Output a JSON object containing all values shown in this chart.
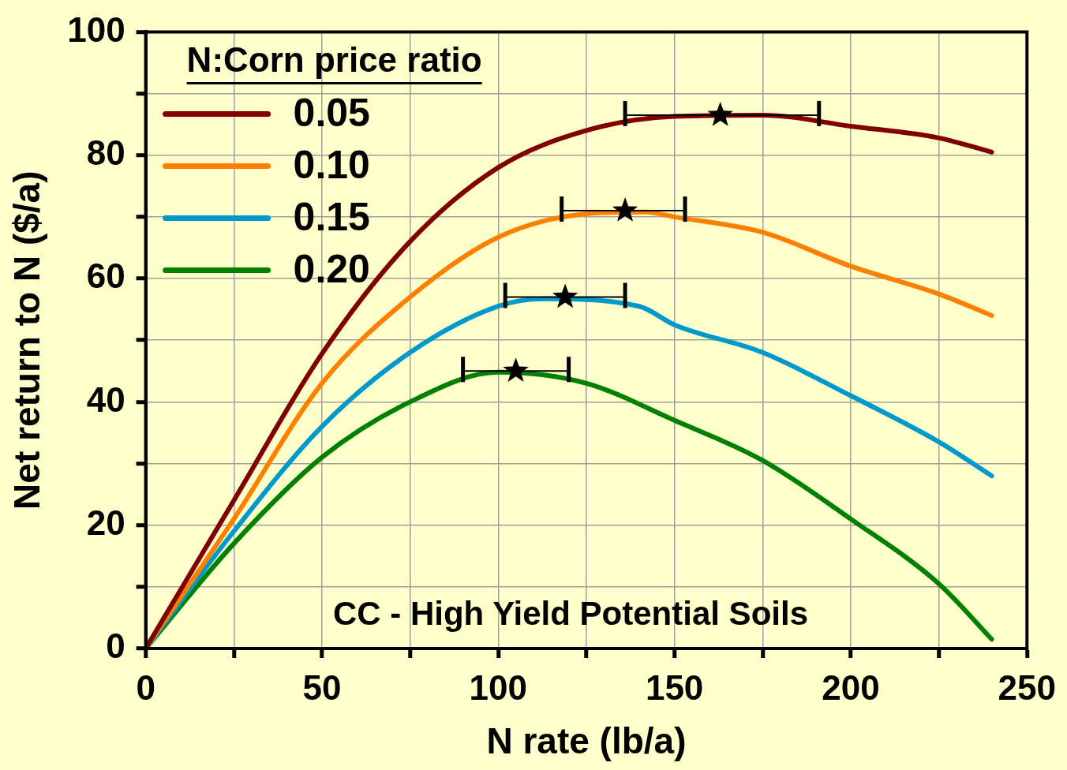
{
  "chart_data": {
    "type": "line",
    "xlabel": "N rate (lb/a)",
    "ylabel": "Net return to N ($/a)",
    "legend_title": "N:Corn price ratio",
    "legend": "top left",
    "grid": true,
    "marker": "none",
    "line_style": "solid",
    "xlim": [
      0,
      250
    ],
    "ylim": [
      0,
      100
    ],
    "xticks": [
      0,
      {
        "value": 25,
        "label": null
      },
      50,
      {
        "value": 75,
        "label": null
      },
      100,
      {
        "value": 125,
        "label": null
      },
      150,
      {
        "value": 175,
        "label": null
      },
      200,
      {
        "value": 225,
        "label": null
      },
      250
    ],
    "yticks": [
      0,
      {
        "value": 10,
        "label": null
      },
      20,
      {
        "value": 30,
        "label": null
      },
      40,
      {
        "value": 50,
        "label": null
      },
      60,
      {
        "value": 70,
        "label": null
      },
      80,
      {
        "value": 90,
        "label": null
      },
      100
    ],
    "annotations": [
      "CC - High Yield Potential Soils"
    ],
    "series": [
      {
        "name": "0.05",
        "color": "#800000",
        "x": [
          0,
          25,
          50,
          75,
          100,
          125,
          150,
          175,
          200,
          225,
          240
        ],
        "values": [
          0,
          24,
          47.8,
          66,
          78,
          84,
          86.3,
          86.5,
          84.7,
          82.8,
          80.5
        ]
      },
      {
        "name": "0.10",
        "color": "#ff8000",
        "x": [
          0,
          25,
          50,
          75,
          100,
          125,
          142,
          150,
          175,
          200,
          225,
          240
        ],
        "values": [
          0,
          21,
          43,
          57,
          66.7,
          70.5,
          70.8,
          70,
          67.5,
          62,
          57.5,
          54
        ]
      },
      {
        "name": "0.15",
        "color": "#0099cc",
        "x": [
          0,
          25,
          50,
          75,
          100,
          113,
          140,
          150,
          175,
          200,
          225,
          240
        ],
        "values": [
          0,
          19,
          36,
          48,
          55.5,
          56.7,
          55.5,
          52.5,
          48,
          41,
          33.5,
          28
        ]
      },
      {
        "name": "0.20",
        "color": "#008000",
        "x": [
          0,
          25,
          50,
          75,
          100,
          125,
          150,
          175,
          200,
          225,
          240
        ],
        "values": [
          0,
          17,
          31,
          40,
          44.8,
          43,
          37,
          30.5,
          21,
          10.5,
          1.5
        ]
      },
      {
        "type": "scatter",
        "color": "#000000",
        "marker": "star",
        "x": [
          163,
          136,
          119,
          105
        ],
        "values": [
          86.5,
          71,
          57,
          45
        ],
        "xerrors": [
          [
            136,
            191
          ],
          [
            118,
            153
          ],
          [
            102,
            136
          ],
          [
            90,
            120
          ]
        ]
      }
    ]
  }
}
